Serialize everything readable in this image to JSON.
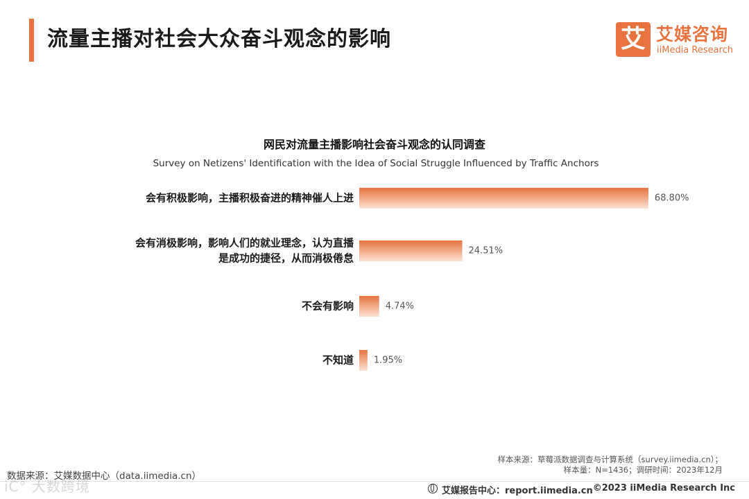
{
  "header": {
    "title": "流量主播对社会大众奋斗观念的影响",
    "accent_color": "#e8733f"
  },
  "logo": {
    "glyph": "艾",
    "cn": "艾媒咨询",
    "en": "iiMedia Research"
  },
  "chart_data": {
    "type": "bar",
    "orientation": "horizontal",
    "title": "网民对流量主播影响社会奋斗观念的认同调查",
    "subtitle": "Survey on Netizens' Identification with the Idea of Social Struggle Influenced by Traffic Anchors",
    "categories": [
      [
        "会有积极影响，主播积极奋进的精神催人上进"
      ],
      [
        "会有消极影响，影响人们的就业理念，认为直播",
        "是成功的捷径，从而消极倦怠"
      ],
      [
        "不会有影响"
      ],
      [
        "不知道"
      ]
    ],
    "values": [
      68.8,
      24.51,
      4.74,
      1.95
    ],
    "value_labels": [
      "68.80%",
      "24.51%",
      "4.74%",
      "1.95%"
    ],
    "unit": "%",
    "xlim": [
      0,
      100
    ],
    "bar_color_start": "#e8733f",
    "bar_color_end": "#fbe2d3"
  },
  "footer": {
    "sample_source": "样本来源：草莓派数据调查与计算系统（survey.iimedia.cn）；",
    "sample_size": "样本量：N=1436；调研时间：2023年12月",
    "data_source": "数据来源：艾媒数据中心（data.iimedia.cn）",
    "report_center": "艾媒报告中心：report.iimedia.cn",
    "copyright": "©2023  iiMedia Research  Inc"
  },
  "watermark": "iC° 大数跨境"
}
